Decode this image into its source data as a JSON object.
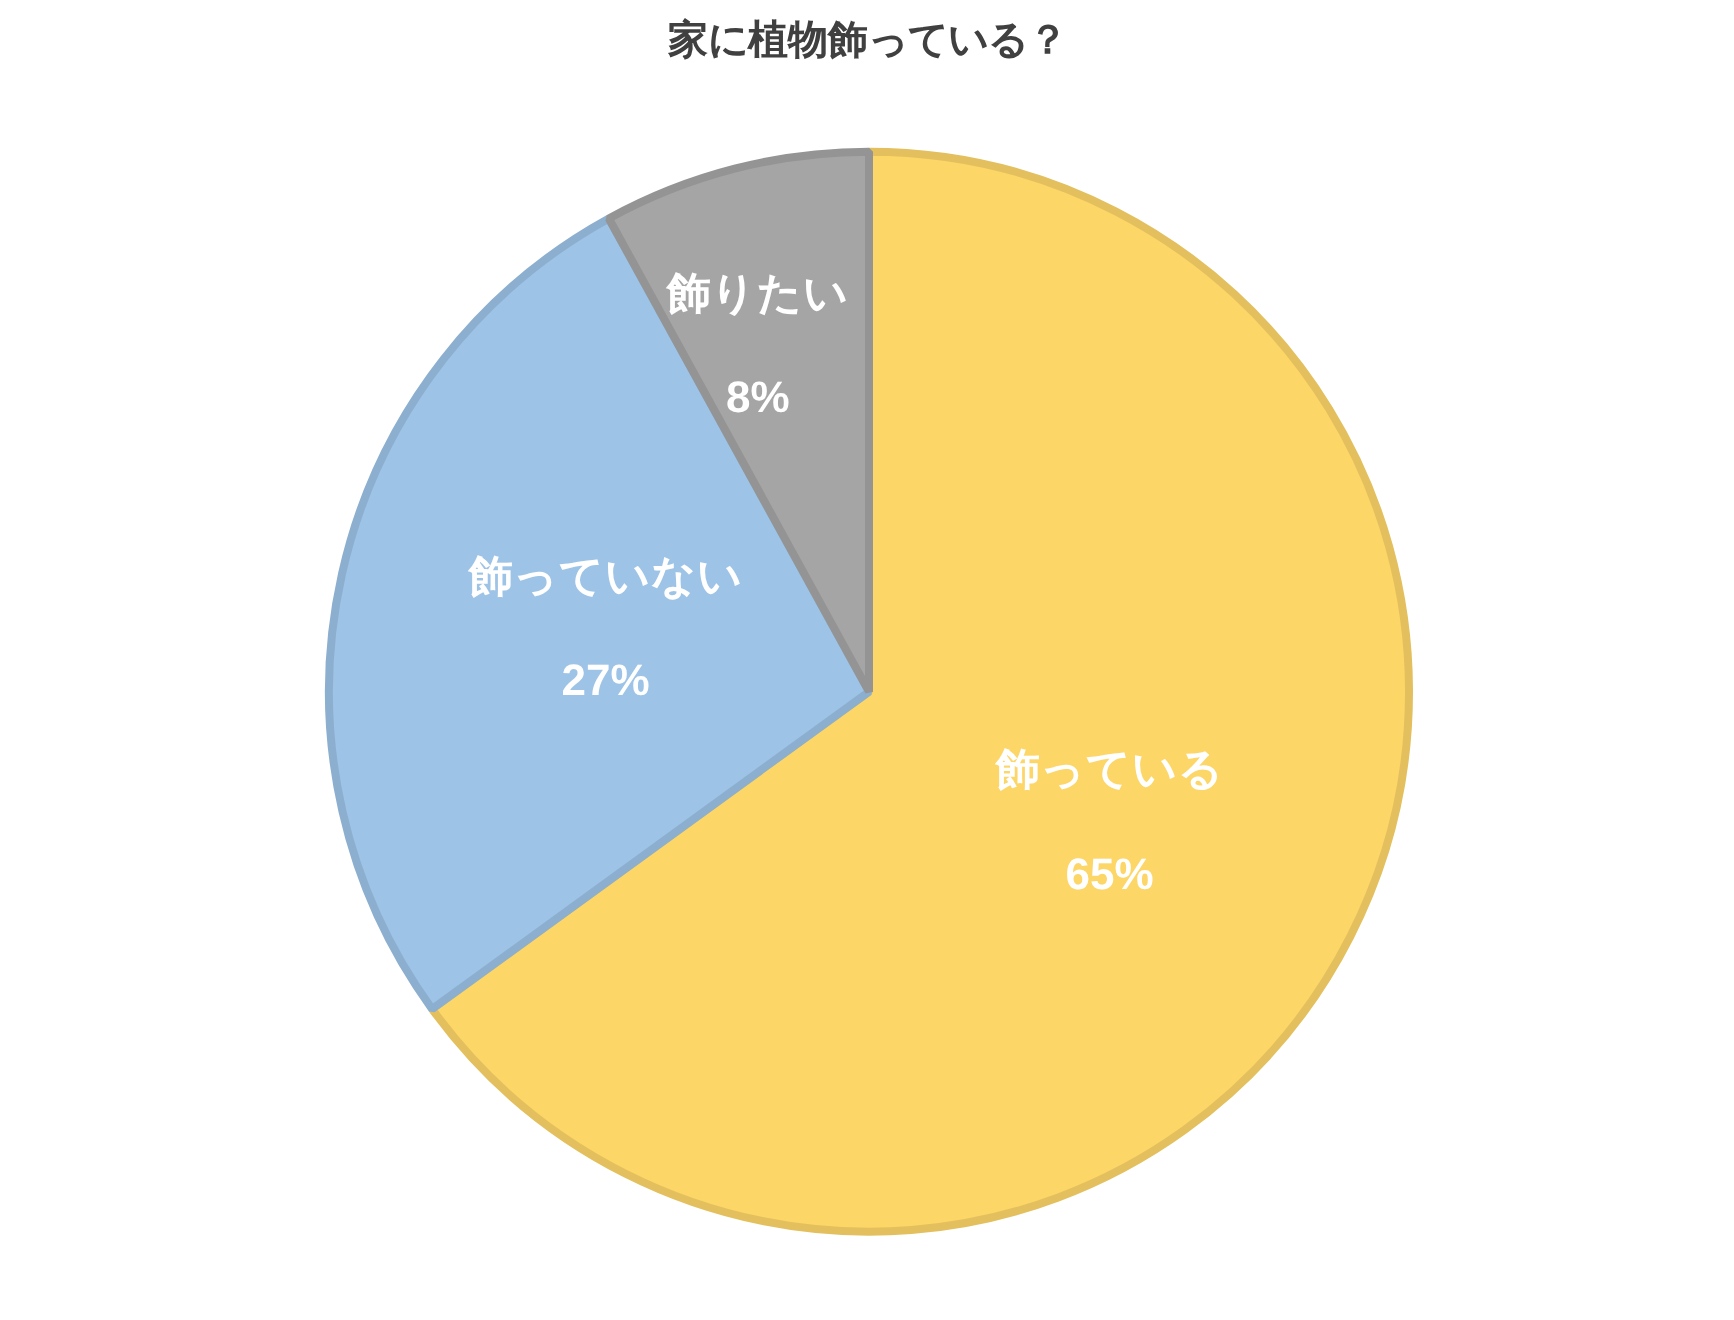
{
  "chart_data": {
    "type": "pie",
    "title": "家に植物飾っている？",
    "categories": [
      "飾っている",
      "飾っていない",
      "飾りたい"
    ],
    "values": [
      65,
      27,
      8
    ],
    "value_labels": [
      "65%",
      "27%",
      "8%"
    ],
    "colors": [
      "#fdd668",
      "#9dc3e6",
      "#a5a5a5"
    ]
  }
}
